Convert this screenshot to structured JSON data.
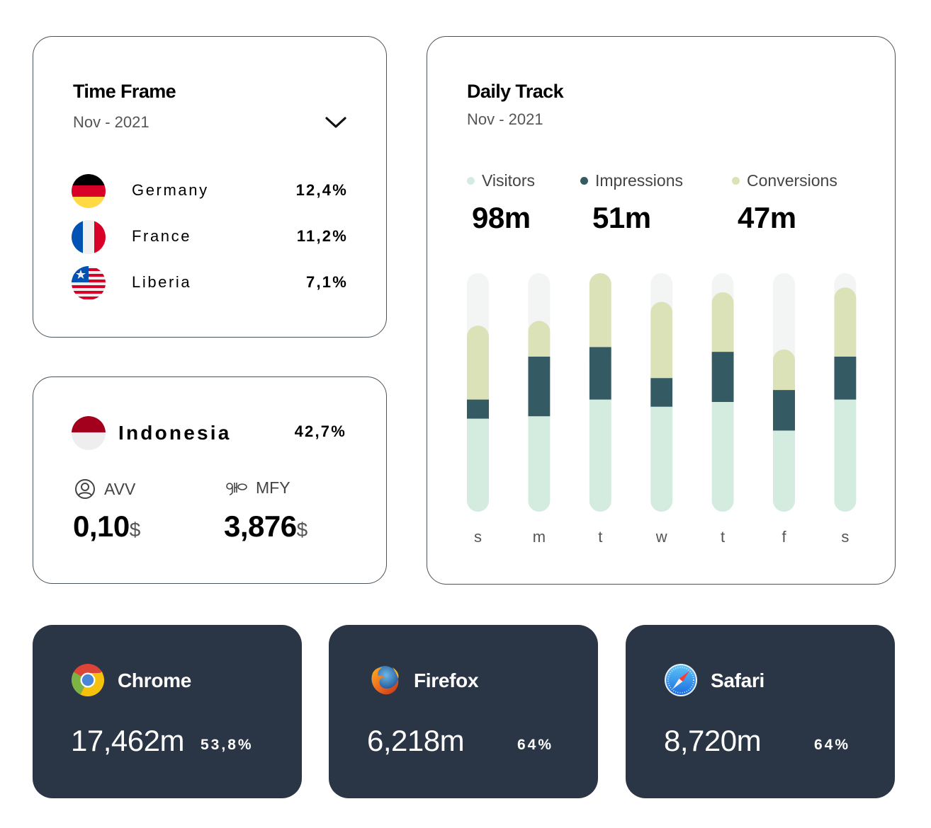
{
  "time_frame": {
    "title": "Time Frame",
    "period": "Nov - 2021",
    "dropdown_icon": "chevron-down-icon",
    "countries": [
      {
        "name": "Germany",
        "percent": "12,4%",
        "flag": "germany-flag-icon"
      },
      {
        "name": "France",
        "percent": "11,2%",
        "flag": "france-flag-icon"
      },
      {
        "name": "Liberia",
        "percent": "7,1%",
        "flag": "liberia-flag-icon"
      }
    ]
  },
  "indonesia": {
    "name": "Indonesia",
    "percent": "42,7%",
    "flag": "indonesia-flag-icon",
    "metrics": [
      {
        "label": "AVV",
        "icon": "user-circle-icon",
        "value": "0,10",
        "currency": "$"
      },
      {
        "label": "MFY",
        "icon": "ribbon-icon",
        "value": "3,876",
        "currency": "$"
      }
    ]
  },
  "daily_track": {
    "title": "Daily Track",
    "period": "Nov - 2021",
    "legend": [
      {
        "label": "Visitors",
        "value": "98m",
        "color": "#d4ece0"
      },
      {
        "label": "Impressions",
        "value": "51m",
        "color": "#345a63"
      },
      {
        "label": "Conversions",
        "value": "47m",
        "color": "#dbe2b8"
      }
    ]
  },
  "chart_data": {
    "type": "bar",
    "stacked": true,
    "title": "Daily Track",
    "subtitle": "Nov - 2021",
    "categories": [
      "s",
      "m",
      "t",
      "w",
      "t",
      "f",
      "s"
    ],
    "ylim": [
      0,
      100
    ],
    "ylabel": "",
    "xlabel": "",
    "grid": false,
    "legend_position": "top",
    "track_color": "#f3f5f4",
    "series": [
      {
        "name": "Visitors",
        "color": "#d4ece0",
        "values": [
          39,
          40,
          47,
          44,
          46,
          34,
          47
        ]
      },
      {
        "name": "Impressions",
        "color": "#345a63",
        "values": [
          8,
          25,
          22,
          12,
          21,
          17,
          18
        ]
      },
      {
        "name": "Conversions",
        "color": "#dbe2b8",
        "values": [
          31,
          15,
          31,
          32,
          25,
          17,
          29
        ]
      }
    ]
  },
  "browsers": [
    {
      "name": "Chrome",
      "icon": "chrome-icon",
      "value": "17,462m",
      "percent": "53,8%"
    },
    {
      "name": "Firefox",
      "icon": "firefox-icon",
      "value": "6,218m",
      "percent": "64%"
    },
    {
      "name": "Safari",
      "icon": "safari-icon",
      "value": "8,720m",
      "percent": "64%"
    }
  ]
}
